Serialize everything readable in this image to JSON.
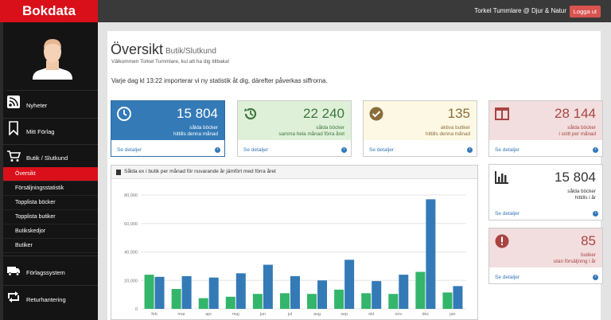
{
  "header": {
    "brand": "Bokdata",
    "user": "Torkel Tummlare @ Djur & Natur",
    "logout_label": "Logga ut"
  },
  "sidebar": {
    "items": [
      {
        "label": "Nyheter",
        "icon": "rss-icon"
      },
      {
        "label": "Mitt Förlag",
        "icon": "bookmark-icon"
      },
      {
        "label": "Butik / Slutkund",
        "icon": "cart-icon"
      }
    ],
    "subitems": [
      "Översikt",
      "Försäljningsstatistik",
      "Topplista böcker",
      "Topplista butiker",
      "Butikskedjor",
      "Butiker"
    ],
    "bottom_items": [
      {
        "label": "Förlagssystem",
        "icon": "truck-icon"
      },
      {
        "label": "Returhantering",
        "icon": "retweet-icon"
      }
    ]
  },
  "page": {
    "title": "Översikt",
    "subtitle": "Butik/Slutkund",
    "welcome": "Välkommen Torkel Tummlare, kul att ha dig tillbaka!",
    "import_note": "Varje dag kl 13:22 importerar vi ny statistik åt dig, därefter påverkas siffrorna."
  },
  "cards": [
    {
      "value": "15 804",
      "line1": "sålda böcker",
      "line2": "hittills denna månad",
      "detail": "Se detaljer",
      "icon": "clock-icon"
    },
    {
      "value": "22 240",
      "line1": "sålda böcker",
      "line2": "samma hela månad förra året",
      "detail": "Se detaljer",
      "icon": "history-icon"
    },
    {
      "value": "135",
      "line1": "aktiva butiker",
      "line2": "hittills denna månad",
      "detail": "Se detaljer",
      "icon": "check-circle-icon"
    },
    {
      "value": "28 144",
      "line1": "sålda böcker",
      "line2": "i snitt per månad",
      "detail": "Se detaljer",
      "icon": "columns-icon"
    },
    {
      "value": "15 804",
      "line1": "sålda böcker",
      "line2": "hittills i år",
      "detail": "Se detaljer",
      "icon": "bar-chart-icon"
    },
    {
      "value": "85",
      "line1": "butiker",
      "line2": "utan försäljning i år",
      "detail": "Se detaljer",
      "icon": "exclamation-circle-icon"
    }
  ],
  "colors": {
    "brand": "#d9101a",
    "green_series": "#33b56b",
    "blue_series": "#337ab7"
  },
  "chart_data": {
    "type": "bar",
    "title": "Sålda ex i butik per månad för nuvarande år jämfört med förra året",
    "categories": [
      "feb",
      "mar",
      "apr",
      "maj",
      "jun",
      "jul",
      "aug",
      "sep",
      "okt",
      "nov",
      "dec",
      "jan"
    ],
    "series": [
      {
        "values": [
          24000,
          14000,
          7500,
          8500,
          10500,
          11000,
          10500,
          13500,
          11000,
          10500,
          26000,
          11500
        ]
      },
      {
        "values": [
          22500,
          23000,
          22000,
          25000,
          31000,
          23000,
          20000,
          34500,
          19500,
          24000,
          77000,
          16000
        ]
      }
    ],
    "ylim": [
      0,
      80000
    ],
    "yticks": [
      "0",
      "20,000",
      "40,000",
      "60,000",
      "80,000"
    ],
    "grid": true
  }
}
